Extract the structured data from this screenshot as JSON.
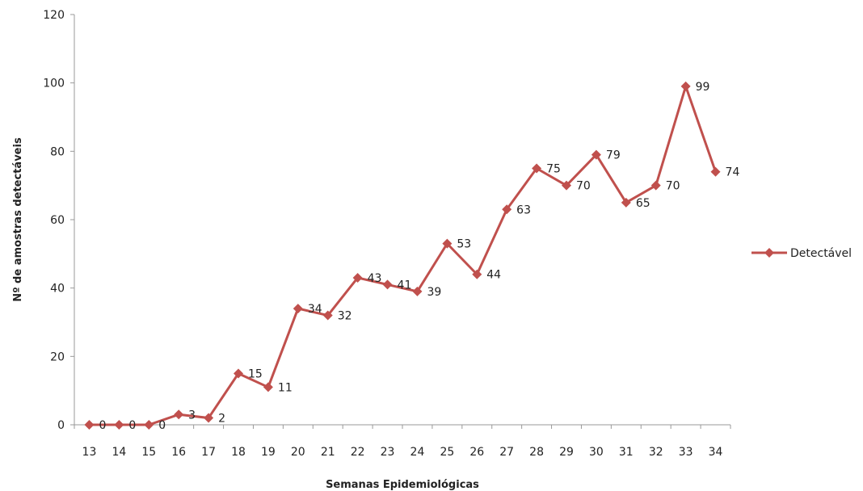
{
  "chart_data": {
    "type": "line",
    "title": "",
    "xlabel": "Semanas Epidemiológicas",
    "ylabel": "Nº de amostras detectáveis",
    "categories": [
      "13",
      "14",
      "15",
      "16",
      "17",
      "18",
      "19",
      "20",
      "21",
      "22",
      "23",
      "24",
      "25",
      "26",
      "27",
      "28",
      "29",
      "30",
      "31",
      "32",
      "33",
      "34"
    ],
    "ylim": [
      0,
      120
    ],
    "yticks": [
      0,
      20,
      40,
      60,
      80,
      100,
      120
    ],
    "grid": false,
    "legend_position": "right",
    "series": [
      {
        "name": "Detectável",
        "color": "#c0504d",
        "marker": "diamond",
        "values": [
          0,
          0,
          0,
          3,
          2,
          15,
          11,
          34,
          32,
          43,
          41,
          39,
          53,
          44,
          63,
          75,
          70,
          79,
          65,
          70,
          99,
          74
        ]
      }
    ]
  }
}
